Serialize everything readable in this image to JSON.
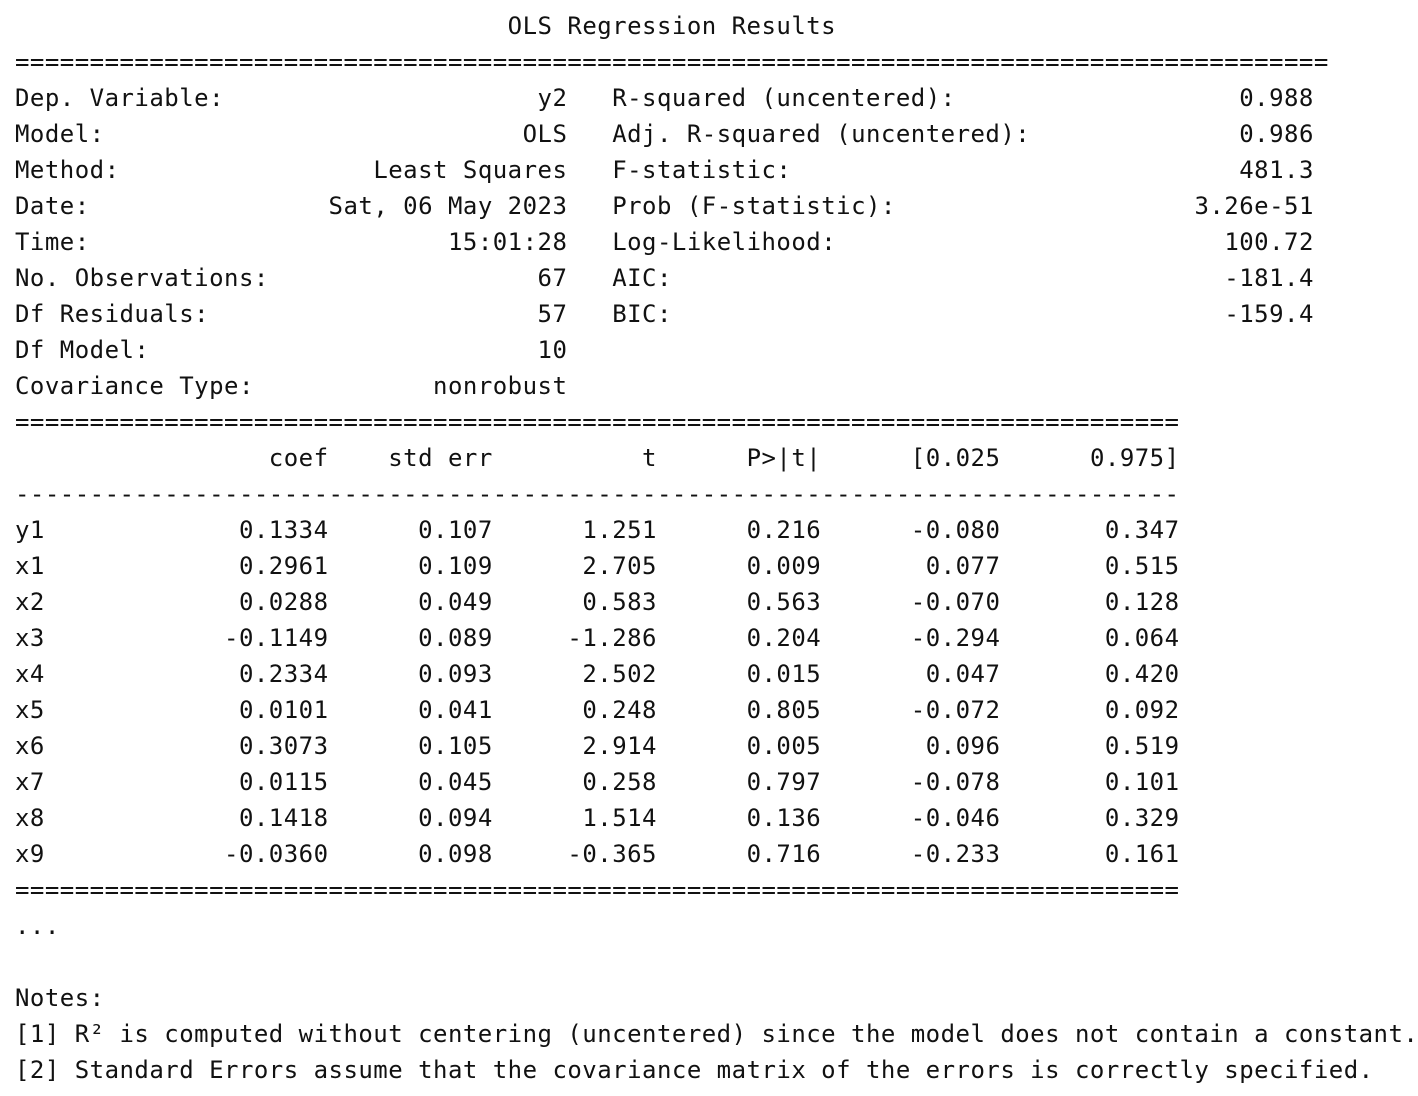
{
  "title": "OLS Regression Results",
  "rules": {
    "double_wide": "==============================================================================",
    "double": "==============================================================================",
    "single": "------------------------------------------------------------------------------"
  },
  "summary": {
    "left": [
      {
        "label": "Dep. Variable:",
        "value": "y2"
      },
      {
        "label": "Model:",
        "value": "OLS"
      },
      {
        "label": "Method:",
        "value": "Least Squares"
      },
      {
        "label": "Date:",
        "value": "Sat, 06 May 2023"
      },
      {
        "label": "Time:",
        "value": "15:01:28"
      },
      {
        "label": "No. Observations:",
        "value": "67"
      },
      {
        "label": "Df Residuals:",
        "value": "57"
      },
      {
        "label": "Df Model:",
        "value": "10"
      },
      {
        "label": "Covariance Type:",
        "value": "nonrobust"
      }
    ],
    "right": [
      {
        "label": "R-squared (uncentered):",
        "value": "0.988"
      },
      {
        "label": "Adj. R-squared (uncentered):",
        "value": "0.986"
      },
      {
        "label": "F-statistic:",
        "value": "481.3"
      },
      {
        "label": "Prob (F-statistic):",
        "value": "3.26e-51"
      },
      {
        "label": "Log-Likelihood:",
        "value": "100.72"
      },
      {
        "label": "AIC:",
        "value": "-181.4"
      },
      {
        "label": "BIC:",
        "value": "-159.4"
      }
    ]
  },
  "coef_table": {
    "headers": [
      "",
      "coef",
      "std err",
      "t",
      "P>|t|",
      "[0.025",
      "0.975]"
    ],
    "rows": [
      [
        "y1",
        "0.1334",
        "0.107",
        "1.251",
        "0.216",
        "-0.080",
        "0.347"
      ],
      [
        "x1",
        "0.2961",
        "0.109",
        "2.705",
        "0.009",
        "0.077",
        "0.515"
      ],
      [
        "x2",
        "0.0288",
        "0.049",
        "0.583",
        "0.563",
        "-0.070",
        "0.128"
      ],
      [
        "x3",
        "-0.1149",
        "0.089",
        "-1.286",
        "0.204",
        "-0.294",
        "0.064"
      ],
      [
        "x4",
        "0.2334",
        "0.093",
        "2.502",
        "0.015",
        "0.047",
        "0.420"
      ],
      [
        "x5",
        "0.0101",
        "0.041",
        "0.248",
        "0.805",
        "-0.072",
        "0.092"
      ],
      [
        "x6",
        "0.3073",
        "0.105",
        "2.914",
        "0.005",
        "0.096",
        "0.519"
      ],
      [
        "x7",
        "0.0115",
        "0.045",
        "0.258",
        "0.797",
        "-0.078",
        "0.101"
      ],
      [
        "x8",
        "0.1418",
        "0.094",
        "1.514",
        "0.136",
        "-0.046",
        "0.329"
      ],
      [
        "x9",
        "-0.0360",
        "0.098",
        "-0.365",
        "0.716",
        "-0.233",
        "0.161"
      ]
    ]
  },
  "ellipsis": "...",
  "notes": {
    "heading": "Notes:",
    "items": [
      "[1] R² is computed without centering (uncentered) since the model does not contain a constant.",
      "[2] Standard Errors assume that the covariance matrix of the errors is correctly specified."
    ]
  }
}
